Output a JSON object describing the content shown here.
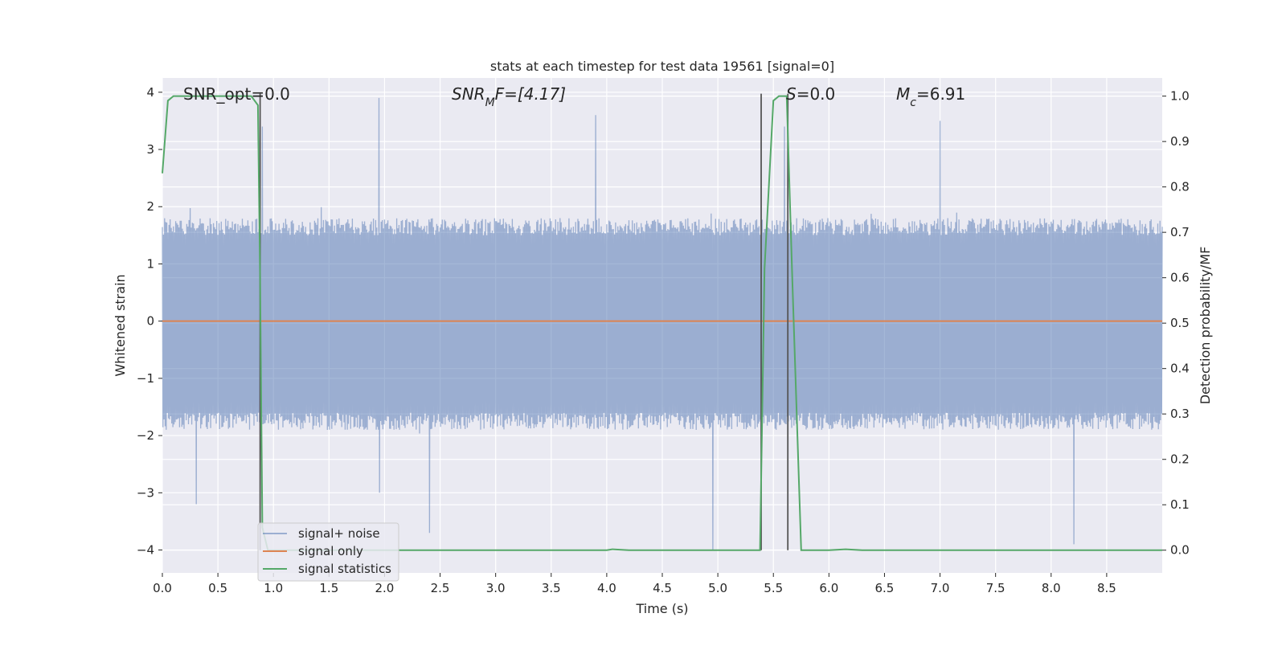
{
  "chart_data": {
    "type": "line",
    "title": "stats at each timestep for test data 19561 [signal=0]",
    "xlabel": "Time (s)",
    "ylabel_left": "Whitened strain",
    "ylabel_right": "Detection probability/MF",
    "xlim": [
      0.0,
      9.0
    ],
    "ylim_left": [
      -4.4,
      4.25
    ],
    "ylim_right": [
      -0.05,
      1.04
    ],
    "x_ticks": [
      "0.0",
      "0.5",
      "1.0",
      "1.5",
      "2.0",
      "2.5",
      "3.0",
      "3.5",
      "4.0",
      "4.5",
      "5.0",
      "5.5",
      "6.0",
      "6.5",
      "7.0",
      "7.5",
      "8.0",
      "8.5"
    ],
    "x_tick_values": [
      0,
      0.5,
      1.0,
      1.5,
      2.0,
      2.5,
      3.0,
      3.5,
      4.0,
      4.5,
      5.0,
      5.5,
      6.0,
      6.5,
      7.0,
      7.5,
      8.0,
      8.5
    ],
    "y_left_ticks": [
      "4",
      "3",
      "2",
      "1",
      "0",
      "−1",
      "−2",
      "−3",
      "−4"
    ],
    "y_left_tick_values": [
      4,
      3,
      2,
      1,
      0,
      -1,
      -2,
      -3,
      -4
    ],
    "y_right_ticks": [
      "1.0",
      "0.9",
      "0.8",
      "0.7",
      "0.6",
      "0.5",
      "0.4",
      "0.3",
      "0.2",
      "0.1",
      "0.0"
    ],
    "y_right_tick_values": [
      1.0,
      0.9,
      0.8,
      0.7,
      0.6,
      0.5,
      0.4,
      0.3,
      0.2,
      0.1,
      0.0
    ],
    "grid": true,
    "legend_position": "lower-left",
    "annotations": {
      "snr_opt": "SNR_opt=0.0",
      "snr_mf_main": "SNR",
      "snr_mf_sub": "M",
      "snr_mf_rest": "F=[4.17]",
      "s_italic": "S",
      "s_rest": "=0.0",
      "mc_main": "M",
      "mc_sub": "c",
      "mc_rest": "=6.91"
    },
    "series": [
      {
        "name": "signal+ noise",
        "color": "#4c72b0",
        "style": "noise band approx. between -1.6 and 1.5 with spikes reaching about +3.9 and -3.9",
        "approx_band": [
          -1.6,
          1.5
        ],
        "peaks_x": [
          0.9,
          1.95,
          3.9,
          5.6,
          7.0
        ],
        "peaks_y": [
          3.4,
          3.9,
          3.6,
          3.4,
          3.5
        ],
        "troughs_x": [
          0.3,
          1.95,
          2.4,
          4.95,
          8.2
        ],
        "troughs_y": [
          -3.2,
          -3.0,
          -3.7,
          -4.0,
          -3.9
        ]
      },
      {
        "name": "signal only",
        "color": "#dd8452",
        "x": [
          0.0,
          9.0
        ],
        "y": [
          0.0,
          0.0
        ]
      },
      {
        "name": "signal statistics",
        "color": "#55a868",
        "axis": "right",
        "x": [
          0.0,
          0.05,
          0.1,
          0.15,
          0.5,
          0.8,
          0.86,
          0.88,
          0.9,
          0.95,
          1.0,
          2.0,
          3.0,
          4.0,
          4.05,
          4.2,
          5.0,
          5.38,
          5.42,
          5.5,
          5.55,
          5.62,
          5.67,
          5.75,
          6.0,
          6.15,
          6.3,
          7.0,
          8.0,
          9.0
        ],
        "y": [
          0.83,
          0.99,
          1.0,
          1.0,
          1.0,
          1.0,
          0.98,
          0.6,
          0.05,
          0.0,
          0.0,
          0.0,
          0.0,
          0.0,
          0.002,
          0.0,
          0.0,
          0.0,
          0.62,
          0.99,
          1.0,
          1.0,
          0.6,
          0.0,
          0.0,
          0.002,
          0.0,
          0.0,
          0.0,
          0.0
        ]
      }
    ],
    "markers_x": [
      0.88,
      5.39,
      5.63
    ],
    "colors": {
      "plot_bg": "#eaeaf2",
      "grid": "#ffffff",
      "marker_line": "#555555",
      "text": "#262626"
    }
  }
}
